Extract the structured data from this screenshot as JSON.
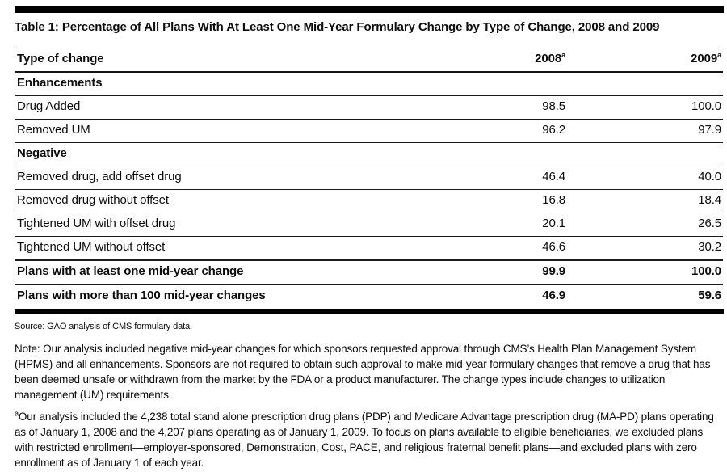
{
  "table": {
    "title": "Table 1: Percentage of All Plans With At Least One Mid-Year Formulary Change by Type of Change, 2008 and 2009",
    "columns": {
      "type_label": "Type of change",
      "year_2008": "2008",
      "year_2009": "2009",
      "superscript": "a"
    },
    "rows": [
      {
        "label": "Enhancements",
        "v2008": "",
        "v2009": "",
        "style": "section"
      },
      {
        "label": "Drug Added",
        "v2008": "98.5",
        "v2009": "100.0",
        "style": "data"
      },
      {
        "label": "Removed UM",
        "v2008": "96.2",
        "v2009": "97.9",
        "style": "data"
      },
      {
        "label": "Negative",
        "v2008": "",
        "v2009": "",
        "style": "section"
      },
      {
        "label": "Removed drug, add offset drug",
        "v2008": "46.4",
        "v2009": "40.0",
        "style": "data"
      },
      {
        "label": "Removed drug without offset",
        "v2008": "16.8",
        "v2009": "18.4",
        "style": "data"
      },
      {
        "label": "Tightened UM with offset drug",
        "v2008": "20.1",
        "v2009": "26.5",
        "style": "data"
      },
      {
        "label": "Tightened UM without offset",
        "v2008": "46.6",
        "v2009": "30.2",
        "style": "data"
      },
      {
        "label": "Plans with at least one mid-year change",
        "v2008": "99.9",
        "v2009": "100.0",
        "style": "summary"
      },
      {
        "label": "Plans with more than 100 mid-year changes",
        "v2008": "46.9",
        "v2009": "59.6",
        "style": "summary"
      }
    ]
  },
  "notes": {
    "source": "Source: GAO analysis of CMS formulary data.",
    "note": "Note: Our analysis included negative mid-year changes for which sponsors requested approval through CMS’s Health Plan Management System (HPMS) and all enhancements. Sponsors are not required to obtain such approval to make mid-year formulary changes that remove a drug that has been deemed unsafe or withdrawn from the market by the FDA or a product manufacturer. The change types include changes to utilization management (UM) requirements.",
    "footnote_marker": "a",
    "footnote": "Our analysis included the 4,238 total stand alone prescription drug plans (PDP) and Medicare Advantage prescription drug (MA-PD) plans operating as of January 1, 2008 and the 4,207 plans operating as of January 1, 2009. To focus on plans available to eligible beneficiaries, we excluded plans with restricted enrollment—employer-sponsored, Demonstration, Cost, PACE, and religious fraternal benefit plans—and excluded plans with zero enrollment as of January 1 of each year."
  },
  "colors": {
    "rule": "#000000",
    "text": "#0c0c0c",
    "background": "#ffffff"
  }
}
